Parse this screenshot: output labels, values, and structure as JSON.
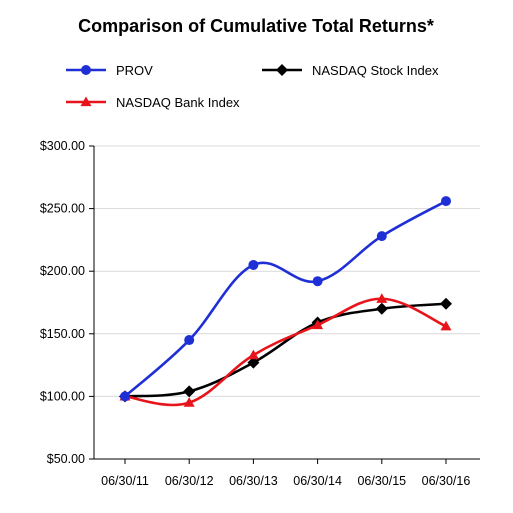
{
  "chart_data": {
    "type": "line",
    "title": "Comparison of Cumulative Total Returns*",
    "categories": [
      "06/30/11",
      "06/30/12",
      "06/30/13",
      "06/30/14",
      "06/30/15",
      "06/30/16"
    ],
    "ylim": [
      50,
      300
    ],
    "yticks": [
      50,
      100,
      150,
      200,
      250,
      300
    ],
    "ytick_labels": [
      "$50.00",
      "$100.00",
      "$150.00",
      "$200.00",
      "$250.00",
      "$300.00"
    ],
    "grid": true,
    "legend_position": "top",
    "series": [
      {
        "name": "PROV",
        "color": "#1f2fd6",
        "marker": "circle",
        "values": [
          100,
          145,
          205,
          192,
          228,
          256
        ]
      },
      {
        "name": "NASDAQ Stock Index",
        "color": "#000000",
        "marker": "diamond",
        "values": [
          100,
          104,
          127,
          159,
          170,
          174
        ]
      },
      {
        "name": "NASDAQ Bank Index",
        "color": "#e8141b",
        "marker": "triangle",
        "values": [
          100,
          95,
          133,
          157,
          178,
          156
        ]
      }
    ]
  }
}
